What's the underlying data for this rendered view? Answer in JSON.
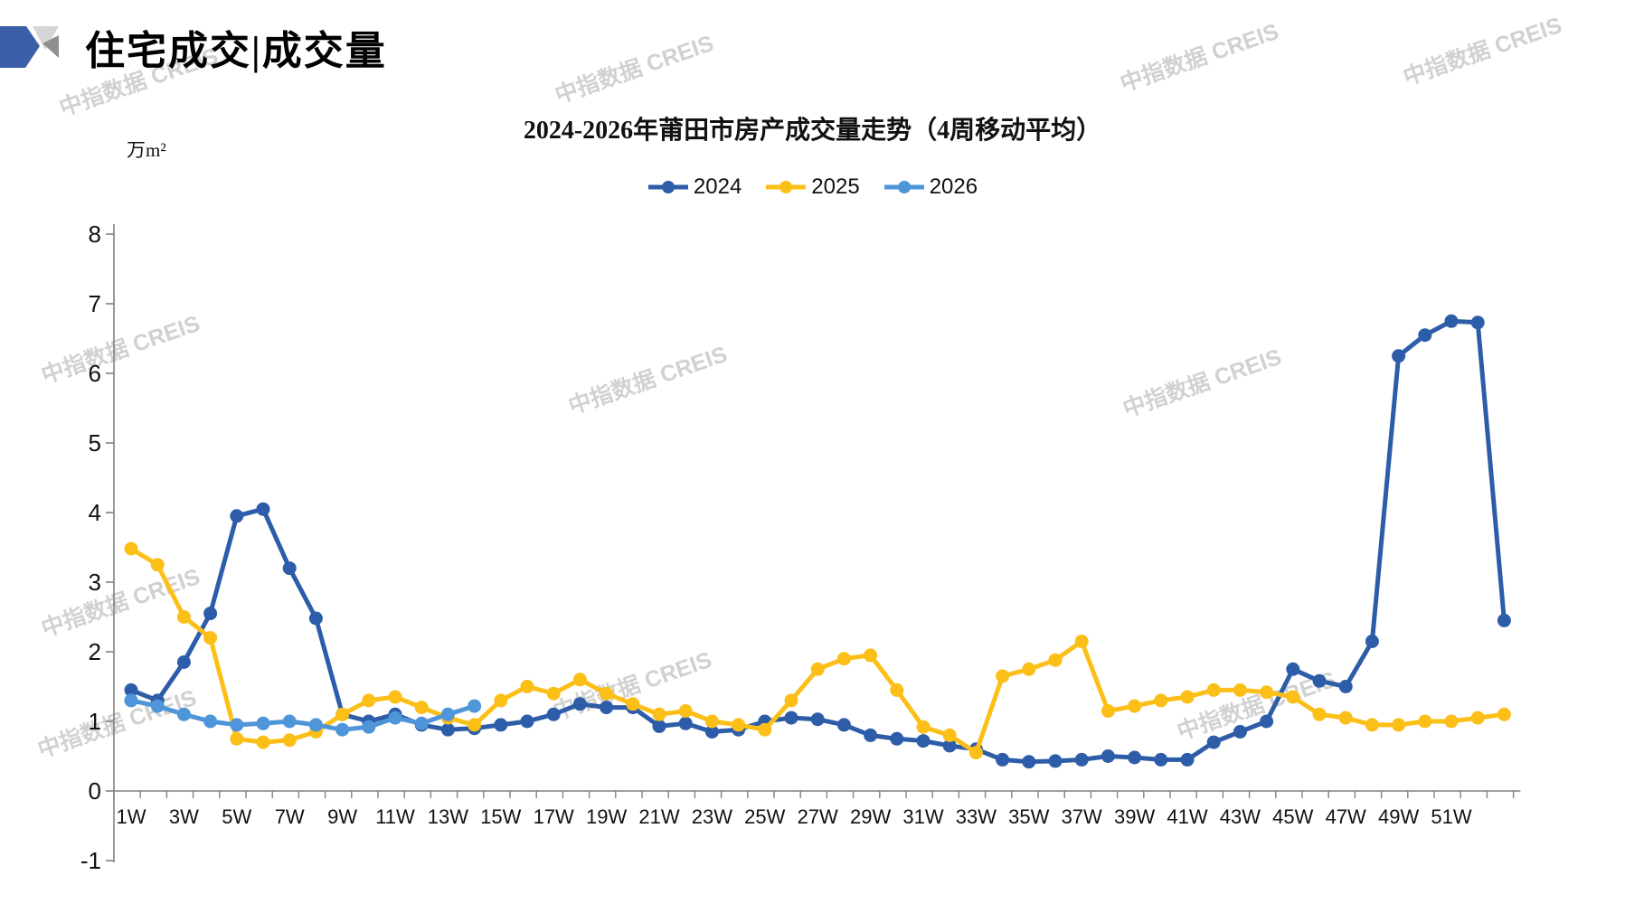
{
  "header": {
    "title": "住宅成交|成交量",
    "logo": "creis-flag-logo"
  },
  "watermark": {
    "text": "中指数据 CREIS"
  },
  "legend": {
    "items": [
      {
        "label": "2024",
        "color": "#2d5ca8"
      },
      {
        "label": "2025",
        "color": "#fbbf17"
      },
      {
        "label": "2026",
        "color": "#4e95d9"
      }
    ]
  },
  "chart_data": {
    "type": "line",
    "title": "2024-2026年莆田市房产成交量走势（4周移动平均）",
    "unit_label": "万m²",
    "xlabel": "",
    "ylabel": "万m²",
    "ylim": [
      -1,
      8
    ],
    "ytick_step": 1,
    "yticks": [
      -1,
      0,
      1,
      2,
      3,
      4,
      5,
      6,
      7,
      8
    ],
    "x_is_weeks": true,
    "weeks_total": 53,
    "xtick_labels": [
      "1W",
      "3W",
      "5W",
      "7W",
      "9W",
      "11W",
      "13W",
      "15W",
      "17W",
      "19W",
      "21W",
      "23W",
      "25W",
      "27W",
      "29W",
      "31W",
      "33W",
      "35W",
      "37W",
      "39W",
      "41W",
      "43W",
      "45W",
      "47W",
      "49W",
      "51W"
    ],
    "grid": false,
    "legend_position": "top-center",
    "series": [
      {
        "name": "2024",
        "color": "#2d5ca8",
        "values": [
          1.45,
          1.3,
          1.85,
          2.55,
          3.95,
          4.05,
          3.2,
          2.48,
          1.1,
          1.0,
          1.1,
          0.95,
          0.88,
          0.9,
          0.95,
          1.0,
          1.1,
          1.25,
          1.2,
          1.2,
          0.93,
          0.97,
          0.85,
          0.88,
          1.0,
          1.05,
          1.03,
          0.95,
          0.8,
          0.75,
          0.72,
          0.65,
          0.6,
          0.45,
          0.42,
          0.43,
          0.45,
          0.5,
          0.48,
          0.45,
          0.45,
          0.7,
          0.85,
          1.0,
          1.75,
          1.58,
          1.5,
          2.15,
          6.25,
          6.55,
          6.75,
          6.73,
          2.45
        ]
      },
      {
        "name": "2025",
        "color": "#fbbf17",
        "values": [
          3.48,
          3.25,
          2.5,
          2.2,
          0.75,
          0.7,
          0.73,
          0.85,
          1.1,
          1.3,
          1.35,
          1.2,
          1.05,
          0.95,
          1.3,
          1.5,
          1.4,
          1.6,
          1.4,
          1.25,
          1.1,
          1.15,
          1.0,
          0.95,
          0.88,
          1.3,
          1.75,
          1.9,
          1.95,
          1.45,
          0.92,
          0.8,
          0.55,
          1.65,
          1.75,
          1.88,
          2.15,
          1.15,
          1.22,
          1.3,
          1.35,
          1.45,
          1.45,
          1.42,
          1.35,
          1.1,
          1.05,
          0.95,
          0.95,
          1.0,
          1.0,
          1.05,
          1.1
        ]
      },
      {
        "name": "2026",
        "color": "#4e95d9",
        "values": [
          1.3,
          1.22,
          1.1,
          1.0,
          0.95,
          0.97,
          1.0,
          0.95,
          0.88,
          0.92,
          1.05,
          0.97,
          1.1,
          1.22
        ]
      }
    ]
  }
}
